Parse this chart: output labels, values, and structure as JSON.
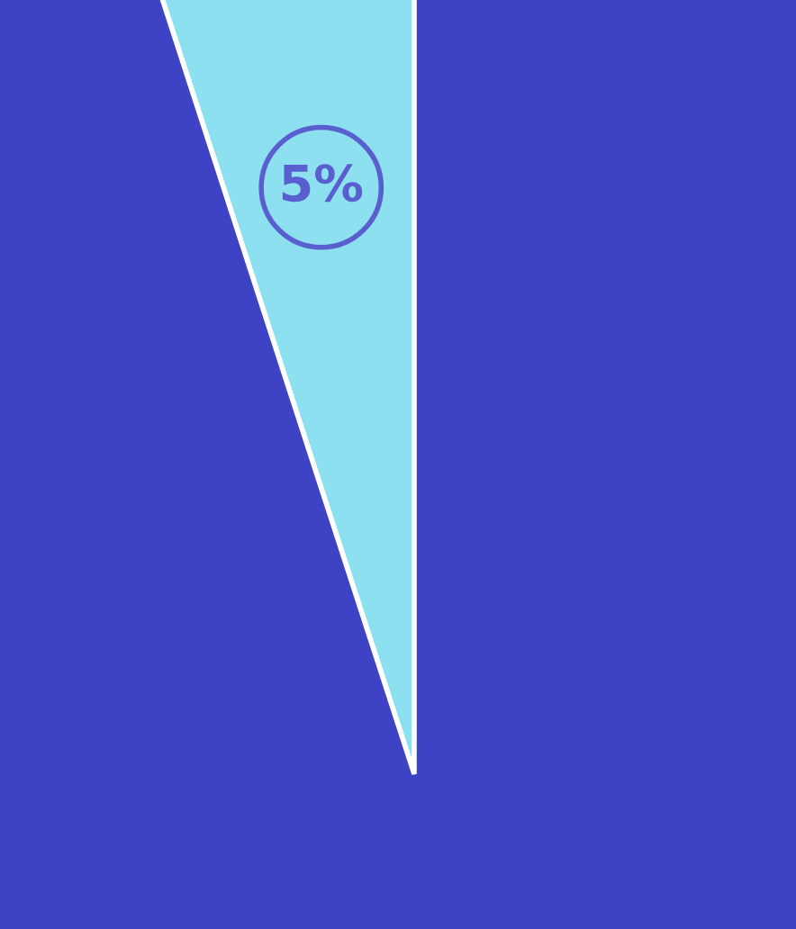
{
  "chart_data": {
    "type": "pie",
    "categories": [
      null,
      null
    ],
    "values": [
      5,
      95
    ],
    "colors": [
      "#8de0ef",
      "#3d43c4"
    ],
    "value_labels": [
      "5%",
      null
    ]
  }
}
